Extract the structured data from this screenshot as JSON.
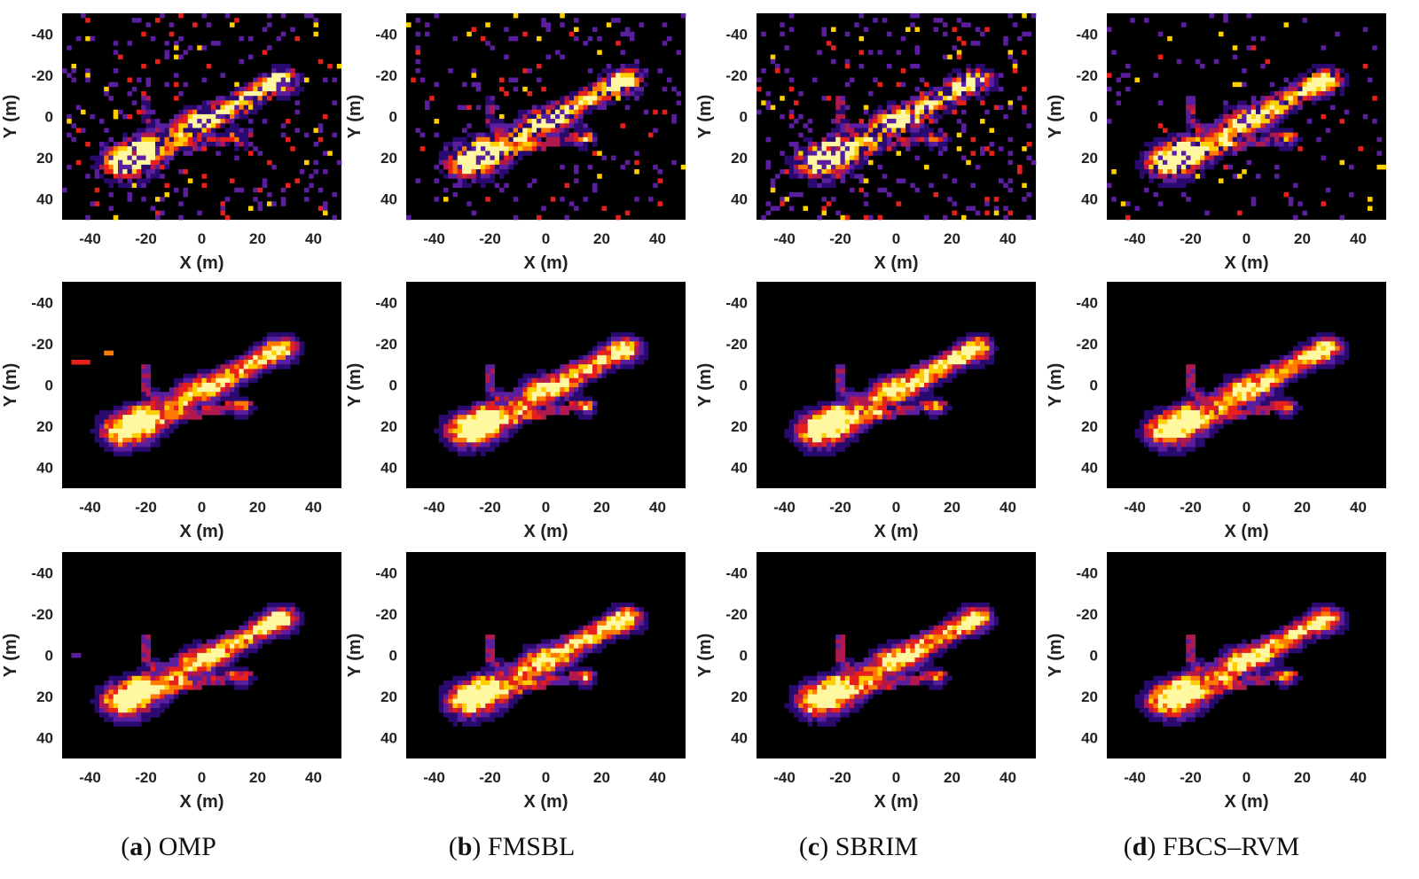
{
  "figure": {
    "captions": [
      {
        "letter": "a",
        "method": "OMP"
      },
      {
        "letter": "b",
        "method": "FMSBL"
      },
      {
        "letter": "c",
        "method": "SBRIM"
      },
      {
        "letter": "d",
        "method": "FBCS–RVM"
      }
    ],
    "colormap": [
      "#000000",
      "#2a0a6e",
      "#5a1e9e",
      "#b01850",
      "#e8201c",
      "#ff7a00",
      "#ffd000",
      "#fff8a0"
    ]
  },
  "chart_data": [
    {
      "type": "heatmap",
      "method": "OMP",
      "row": 1,
      "xlabel": "X (m)",
      "ylabel": "Y (m)",
      "xlim": [
        -50,
        50
      ],
      "ylim": [
        50,
        -50
      ],
      "xticks": [
        "-40",
        "-20",
        "0",
        "20",
        "40"
      ],
      "yticks": [
        "-40",
        "-20",
        "0",
        "20",
        "40"
      ],
      "y_reversed": true,
      "noise_level": 0.9
    },
    {
      "type": "heatmap",
      "method": "FMSBL",
      "row": 1,
      "xlabel": "X (m)",
      "ylabel": "Y (m)",
      "xlim": [
        -50,
        50
      ],
      "ylim": [
        50,
        -50
      ],
      "xticks": [
        "-40",
        "-20",
        "0",
        "20",
        "40"
      ],
      "yticks": [
        "-40",
        "-20",
        "0",
        "20",
        "40"
      ],
      "y_reversed": true,
      "noise_level": 0.75
    },
    {
      "type": "heatmap",
      "method": "SBRIM",
      "row": 1,
      "xlabel": "X (m)",
      "ylabel": "Y (m)",
      "xlim": [
        -50,
        50
      ],
      "ylim": [
        50,
        -50
      ],
      "xticks": [
        "-40",
        "-20",
        "0",
        "20",
        "40"
      ],
      "yticks": [
        "-40",
        "-20",
        "0",
        "20",
        "40"
      ],
      "y_reversed": true,
      "noise_level": 1.0
    },
    {
      "type": "heatmap",
      "method": "FBCS–RVM",
      "row": 1,
      "xlabel": "X (m)",
      "ylabel": "Y (m)",
      "xlim": [
        -50,
        50
      ],
      "ylim": [
        50,
        -50
      ],
      "xticks": [
        "-40",
        "-20",
        "0",
        "20",
        "40"
      ],
      "yticks": [
        "-40",
        "-20",
        "0",
        "20",
        "40"
      ],
      "y_reversed": true,
      "noise_level": 0.45
    },
    {
      "type": "heatmap",
      "method": "OMP",
      "row": 2,
      "xlabel": "X (m)",
      "ylabel": "Y (m)",
      "xlim": [
        -50,
        50
      ],
      "ylim": [
        50,
        -50
      ],
      "xticks": [
        "-40",
        "-20",
        "0",
        "20",
        "40"
      ],
      "yticks": [
        "-40",
        "-20",
        "0",
        "20",
        "40"
      ],
      "y_reversed": true,
      "noise_level": 0.0
    },
    {
      "type": "heatmap",
      "method": "FMSBL",
      "row": 2,
      "xlabel": "X (m)",
      "ylabel": "Y (m)",
      "xlim": [
        -50,
        50
      ],
      "ylim": [
        50,
        -50
      ],
      "xticks": [
        "-40",
        "-20",
        "0",
        "20",
        "40"
      ],
      "yticks": [
        "-40",
        "-20",
        "0",
        "20",
        "40"
      ],
      "y_reversed": true,
      "noise_level": 0.0
    },
    {
      "type": "heatmap",
      "method": "SBRIM",
      "row": 2,
      "xlabel": "X (m)",
      "ylabel": "Y (m)",
      "xlim": [
        -50,
        50
      ],
      "ylim": [
        50,
        -50
      ],
      "xticks": [
        "-40",
        "-20",
        "0",
        "20",
        "40"
      ],
      "yticks": [
        "-40",
        "-20",
        "0",
        "20",
        "40"
      ],
      "y_reversed": true,
      "noise_level": 0.0
    },
    {
      "type": "heatmap",
      "method": "FBCS–RVM",
      "row": 2,
      "xlabel": "X (m)",
      "ylabel": "Y (m)",
      "xlim": [
        -50,
        50
      ],
      "ylim": [
        50,
        -50
      ],
      "xticks": [
        "-40",
        "-20",
        "0",
        "20",
        "40"
      ],
      "yticks": [
        "-40",
        "-20",
        "0",
        "20",
        "40"
      ],
      "y_reversed": true,
      "noise_level": 0.0
    },
    {
      "type": "heatmap",
      "method": "OMP",
      "row": 3,
      "xlabel": "X (m)",
      "ylabel": "Y (m)",
      "xlim": [
        -50,
        50
      ],
      "ylim": [
        50,
        -50
      ],
      "xticks": [
        "-40",
        "-20",
        "0",
        "20",
        "40"
      ],
      "yticks": [
        "-40",
        "-20",
        "0",
        "20",
        "40"
      ],
      "y_reversed": true,
      "noise_level": 0.0
    },
    {
      "type": "heatmap",
      "method": "FMSBL",
      "row": 3,
      "xlabel": "X (m)",
      "ylabel": "Y (m)",
      "xlim": [
        -50,
        50
      ],
      "ylim": [
        50,
        -50
      ],
      "xticks": [
        "-40",
        "-20",
        "0",
        "20",
        "40"
      ],
      "yticks": [
        "-40",
        "-20",
        "0",
        "20",
        "40"
      ],
      "y_reversed": true,
      "noise_level": 0.0
    },
    {
      "type": "heatmap",
      "method": "SBRIM",
      "row": 3,
      "xlabel": "X (m)",
      "ylabel": "Y (m)",
      "xlim": [
        -50,
        50
      ],
      "ylim": [
        50,
        -50
      ],
      "xticks": [
        "-40",
        "-20",
        "0",
        "20",
        "40"
      ],
      "yticks": [
        "-40",
        "-20",
        "0",
        "20",
        "40"
      ],
      "y_reversed": true,
      "noise_level": 0.0
    },
    {
      "type": "heatmap",
      "method": "FBCS–RVM",
      "row": 3,
      "xlabel": "X (m)",
      "ylabel": "Y (m)",
      "xlim": [
        -50,
        50
      ],
      "ylim": [
        50,
        -50
      ],
      "xticks": [
        "-40",
        "-20",
        "0",
        "20",
        "40"
      ],
      "yticks": [
        "-40",
        "-20",
        "0",
        "20",
        "40"
      ],
      "y_reversed": true,
      "noise_level": 0.0
    }
  ]
}
